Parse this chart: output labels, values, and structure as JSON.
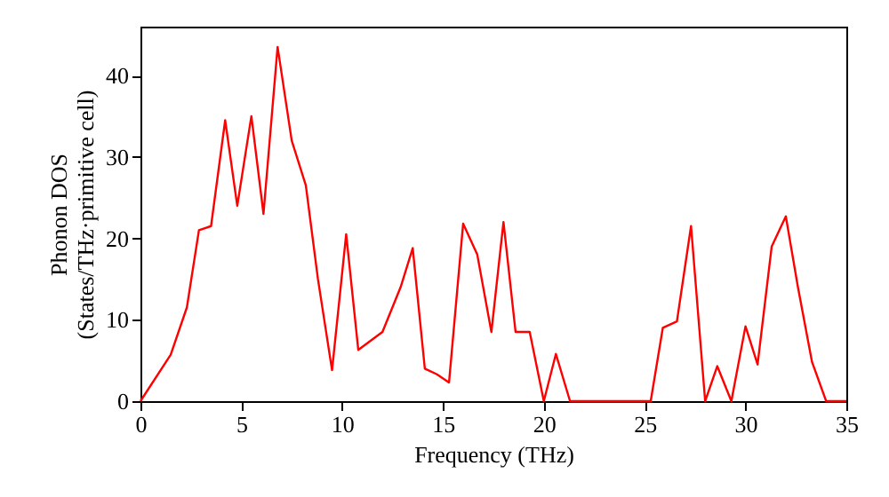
{
  "chart_data": {
    "type": "line",
    "xlabel": "Frequency (THz)",
    "ylabel": "Phonon DOS\n(States/THz·primitive cell)",
    "xlim": [
      0,
      35
    ],
    "xticks": [
      0,
      5,
      10,
      15,
      20,
      25,
      30,
      35
    ],
    "ylim": [
      0,
      46
    ],
    "yticks": [
      0,
      10,
      20,
      30,
      40
    ],
    "grid": false,
    "marker": "none",
    "line_style": "solid",
    "series": [
      {
        "color": "#ff0000",
        "x": [
          0,
          1.5,
          2.3,
          2.9,
          3.5,
          4.2,
          4.8,
          5.5,
          6.1,
          6.8,
          7.5,
          8.2,
          8.8,
          9.5,
          10.2,
          10.8,
          12,
          12.9,
          13.5,
          14.1,
          14.7,
          15.3,
          16,
          16.7,
          17.4,
          18,
          18.6,
          19.3,
          20,
          20.6,
          21.3,
          25.3,
          25.9,
          26.6,
          27.3,
          28,
          28.6,
          29.3,
          30,
          30.6,
          31.3,
          32,
          32.6,
          33.3,
          34,
          35
        ],
        "values": [
          0,
          5.7,
          11.5,
          21,
          21.5,
          34.5,
          24,
          35,
          23,
          43.5,
          32,
          26.5,
          15,
          3.8,
          20.5,
          6.3,
          8.5,
          14,
          18.8,
          4,
          3.3,
          2.3,
          21.8,
          18,
          8.5,
          22,
          8.5,
          8.5,
          0,
          5.8,
          0,
          0,
          9,
          9.8,
          21.5,
          0,
          4.3,
          0,
          9.2,
          4.5,
          19,
          22.7,
          14,
          4.8,
          0,
          0
        ]
      }
    ]
  }
}
